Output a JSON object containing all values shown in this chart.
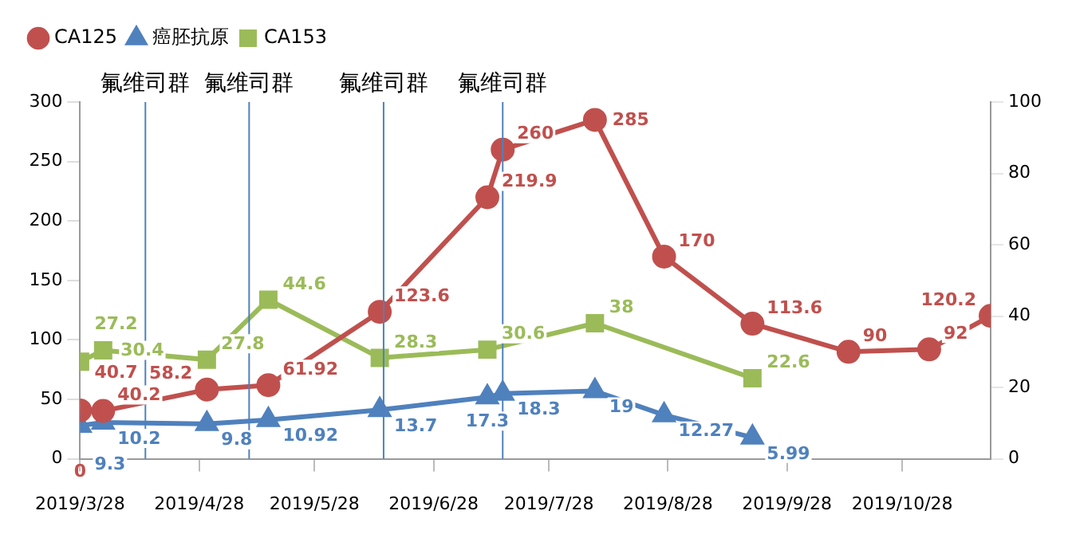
{
  "chart_data": {
    "type": "line",
    "x": [
      "2019-03-28",
      "2019-04-03",
      "2019-04-30",
      "2019-05-16",
      "2019-06-14",
      "2019-07-12",
      "2019-07-16",
      "2019-08-09",
      "2019-08-27",
      "2019-09-19",
      "2019-10-14",
      "2019-11-04",
      "2019-11-20"
    ],
    "series": [
      {
        "name": "CA125",
        "color": "#c0504d",
        "marker": "circle",
        "values": [
          40.7,
          40.2,
          58.2,
          61.92,
          123.6,
          219.9,
          260,
          285,
          170,
          113.6,
          90,
          92,
          120.2
        ]
      },
      {
        "name": "癌胚抗原",
        "color": "#4f81bd",
        "marker": "triangle",
        "axis": "y2",
        "values": [
          9.3,
          10.2,
          9.8,
          10.92,
          13.7,
          17.3,
          18.3,
          19,
          12.27,
          5.99,
          null,
          null,
          null
        ]
      },
      {
        "name": "CA153",
        "color": "#9bbb59",
        "marker": "square",
        "axis": "y2",
        "values": [
          27.2,
          30.4,
          27.8,
          44.6,
          28.3,
          30.6,
          null,
          38,
          null,
          22.6,
          null,
          null,
          null
        ]
      }
    ],
    "xlim": [
      "2019-03-28",
      "2019-11-20"
    ],
    "xticks": [
      {
        "value": "2019-03-28",
        "label": "2019/3/28"
      },
      {
        "value": "2019-04-28",
        "label": "2019/4/28"
      },
      {
        "value": "2019-05-28",
        "label": "2019/5/28"
      },
      {
        "value": "2019-06-28",
        "label": "2019/6/28"
      },
      {
        "value": "2019-07-28",
        "label": "2019/7/28"
      },
      {
        "value": "2019-08-28",
        "label": "2019/8/28"
      },
      {
        "value": "2019-09-28",
        "label": "2019/9/28"
      },
      {
        "value": "2019-10-28",
        "label": "2019/10/28"
      }
    ],
    "ylim": [
      0,
      300
    ],
    "yticks": [
      0,
      50,
      100,
      150,
      200,
      250,
      300
    ],
    "y2lim": [
      0,
      100
    ],
    "y2ticks": [
      0,
      20,
      40,
      60,
      80,
      100
    ],
    "ref_lines": [
      {
        "axis": "x",
        "value": "2019-04-14",
        "label": "氟维司群",
        "color": "#4f81bd"
      },
      {
        "axis": "x",
        "value": "2019-05-11",
        "label": "氟维司群",
        "color": "#4f81bd"
      },
      {
        "axis": "x",
        "value": "2019-06-15",
        "label": "氟维司群",
        "color": "#4f81bd"
      },
      {
        "axis": "x",
        "value": "2019-07-16",
        "label": "氟维司群",
        "color": "#4f81bd"
      }
    ],
    "annotations": [
      "0"
    ],
    "data_labels": true,
    "grid": false,
    "legend": "top left",
    "line_style": "solid"
  }
}
